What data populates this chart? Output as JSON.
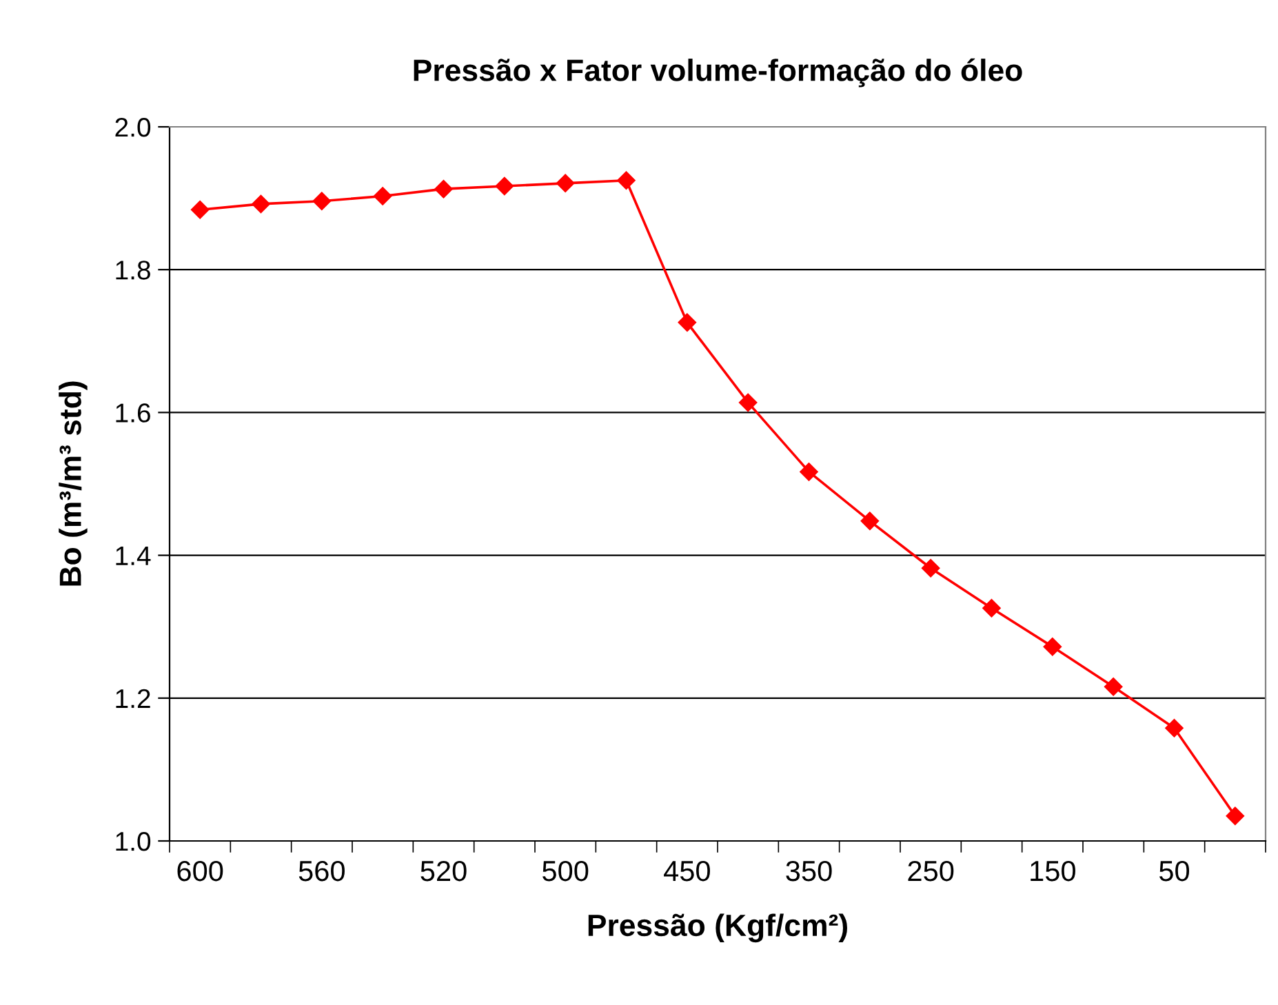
{
  "chart_data": {
    "type": "line",
    "title": "Pressão x Fator volume-formação do óleo",
    "xlabel": "Pressão (Kgf/cm²)",
    "ylabel": "Bo (m³/m³ std)",
    "categories": [
      "600",
      null,
      "560",
      null,
      "520",
      null,
      "500",
      null,
      "450",
      null,
      "350",
      null,
      "250",
      null,
      "150",
      null,
      "50",
      null
    ],
    "series": [
      {
        "color": "#ff0000",
        "values": [
          1.884,
          1.892,
          1.896,
          1.903,
          1.913,
          1.917,
          1.921,
          1.925,
          1.726,
          1.614,
          1.517,
          1.448,
          1.382,
          1.326,
          1.272,
          1.216,
          1.158,
          1.035
        ]
      }
    ],
    "ylim": [
      1.0,
      2.0
    ],
    "yticks": [
      {
        "value": 1,
        "label": "1.0"
      },
      1.2,
      1.4,
      1.6,
      1.8,
      {
        "value": 2,
        "label": "2.0"
      }
    ],
    "grid": "y",
    "marker": "diamond",
    "line_style": "solid"
  }
}
